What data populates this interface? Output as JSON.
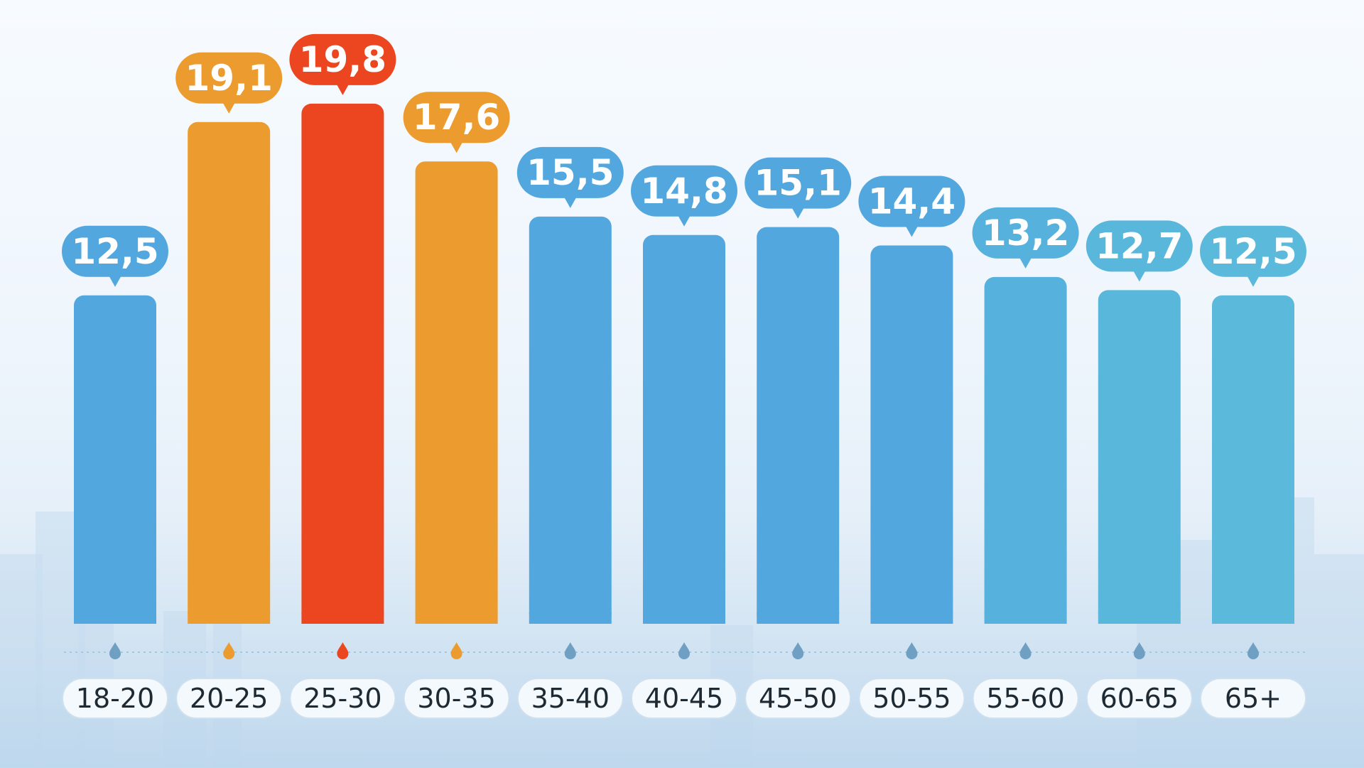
{
  "chart_data": {
    "type": "bar",
    "categories": [
      "18-20",
      "20-25",
      "25-30",
      "30-35",
      "35-40",
      "40-45",
      "45-50",
      "50-55",
      "55-60",
      "60-65",
      "65+"
    ],
    "values": [
      12.5,
      19.1,
      19.8,
      17.6,
      15.5,
      14.8,
      15.1,
      14.4,
      13.2,
      12.7,
      12.5
    ],
    "value_labels": [
      "12,5",
      "19,1",
      "19,8",
      "17,6",
      "15,5",
      "14,8",
      "15,1",
      "14,4",
      "13,2",
      "12,7",
      "12,5"
    ],
    "colors": [
      "#52a8de",
      "#ec9b2f",
      "#eb4620",
      "#ec9b2f",
      "#52a8de",
      "#52a8de",
      "#52a8de",
      "#52a8de",
      "#56b2dc",
      "#59b7dc",
      "#5bbadc"
    ],
    "label_colors": [
      "#52a8de",
      "#ec9b2f",
      "#eb4620",
      "#ec9b2f",
      "#52a8de",
      "#52a8de",
      "#52a8de",
      "#52a8de",
      "#56b2dc",
      "#59b7dc",
      "#5bbadc"
    ],
    "ylim": [
      0,
      20.5
    ],
    "grid": false,
    "legend": "none",
    "icon": "water-drop-icon"
  }
}
